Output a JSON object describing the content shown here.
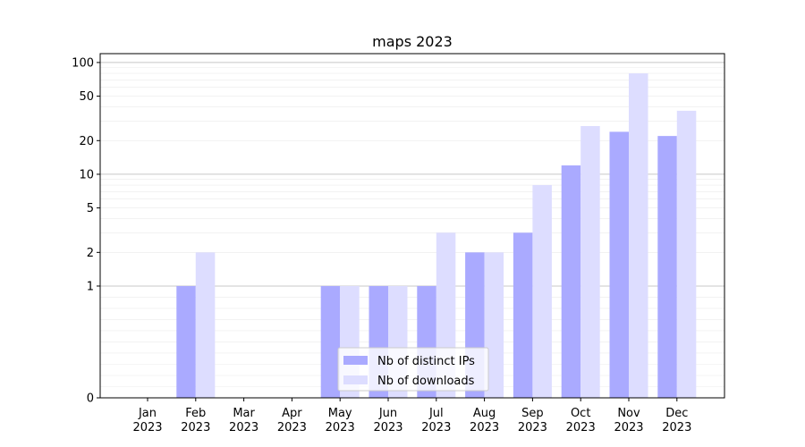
{
  "chart_data": {
    "type": "bar",
    "title": "maps 2023",
    "xlabel": "",
    "ylabel": "",
    "y_scale": "symlog",
    "ylim": [
      0,
      120
    ],
    "y_ticks": [
      0,
      1,
      2,
      5,
      10,
      20,
      50,
      100
    ],
    "grid": "horizontal",
    "legend_position": "lower-center",
    "categories": [
      [
        "Jan",
        "2023"
      ],
      [
        "Feb",
        "2023"
      ],
      [
        "Mar",
        "2023"
      ],
      [
        "Apr",
        "2023"
      ],
      [
        "May",
        "2023"
      ],
      [
        "Jun",
        "2023"
      ],
      [
        "Jul",
        "2023"
      ],
      [
        "Aug",
        "2023"
      ],
      [
        "Sep",
        "2023"
      ],
      [
        "Oct",
        "2023"
      ],
      [
        "Nov",
        "2023"
      ],
      [
        "Dec",
        "2023"
      ]
    ],
    "series": [
      {
        "name": "Nb of distinct IPs",
        "color": "#aaaaff",
        "values": [
          0,
          1,
          0,
          0,
          1,
          1,
          1,
          2,
          3,
          12,
          24,
          22
        ]
      },
      {
        "name": "Nb of downloads",
        "color": "#ddddff",
        "values": [
          0,
          2,
          0,
          0,
          1,
          1,
          3,
          2,
          8,
          27,
          80,
          37
        ]
      }
    ]
  }
}
